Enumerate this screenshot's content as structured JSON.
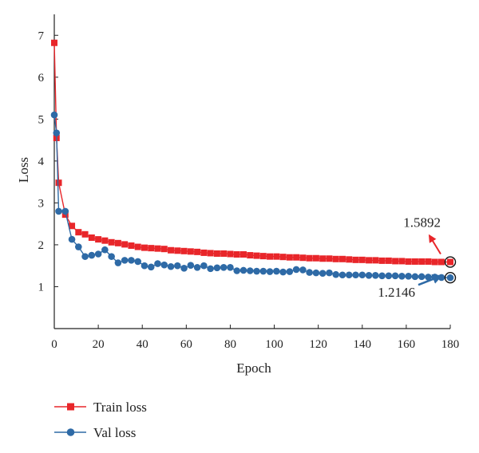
{
  "chart_data": {
    "type": "line",
    "xlabel": "Epoch",
    "ylabel": "Loss",
    "xlim": [
      0,
      180
    ],
    "ylim": [
      0,
      7.5
    ],
    "xticks": [
      0,
      20,
      40,
      60,
      80,
      100,
      120,
      140,
      160,
      180
    ],
    "yticks": [
      1,
      2,
      3,
      4,
      5,
      6,
      7
    ],
    "grid": false,
    "legend_position": "bottom-left",
    "series": [
      {
        "name": "Train loss",
        "color": "#e8262a",
        "marker": "square",
        "x": [
          0,
          1,
          2,
          5,
          8,
          11,
          14,
          17,
          20,
          23,
          26,
          29,
          32,
          35,
          38,
          41,
          44,
          47,
          50,
          53,
          56,
          59,
          62,
          65,
          68,
          71,
          74,
          77,
          80,
          83,
          86,
          89,
          92,
          95,
          98,
          101,
          104,
          107,
          110,
          113,
          116,
          119,
          122,
          125,
          128,
          131,
          134,
          137,
          140,
          143,
          146,
          149,
          152,
          155,
          158,
          161,
          164,
          167,
          170,
          173,
          176,
          180
        ],
        "values": [
          6.82,
          4.55,
          3.48,
          2.72,
          2.45,
          2.3,
          2.25,
          2.17,
          2.13,
          2.1,
          2.06,
          2.04,
          2.01,
          1.98,
          1.95,
          1.93,
          1.92,
          1.91,
          1.9,
          1.87,
          1.86,
          1.85,
          1.84,
          1.83,
          1.81,
          1.8,
          1.79,
          1.79,
          1.78,
          1.77,
          1.77,
          1.75,
          1.74,
          1.73,
          1.72,
          1.72,
          1.71,
          1.7,
          1.7,
          1.69,
          1.68,
          1.68,
          1.67,
          1.67,
          1.66,
          1.66,
          1.65,
          1.64,
          1.64,
          1.63,
          1.63,
          1.62,
          1.62,
          1.61,
          1.61,
          1.6,
          1.6,
          1.6,
          1.6,
          1.59,
          1.59,
          1.5892
        ]
      },
      {
        "name": "Val loss",
        "color": "#2e6aa6",
        "marker": "circle",
        "x": [
          0,
          1,
          2,
          5,
          8,
          11,
          14,
          17,
          20,
          23,
          26,
          29,
          32,
          35,
          38,
          41,
          44,
          47,
          50,
          53,
          56,
          59,
          62,
          65,
          68,
          71,
          74,
          77,
          80,
          83,
          86,
          89,
          92,
          95,
          98,
          101,
          104,
          107,
          110,
          113,
          116,
          119,
          122,
          125,
          128,
          131,
          134,
          137,
          140,
          143,
          146,
          149,
          152,
          155,
          158,
          161,
          164,
          167,
          170,
          173,
          176,
          180
        ],
        "values": [
          5.1,
          4.67,
          2.8,
          2.8,
          2.13,
          1.95,
          1.72,
          1.75,
          1.78,
          1.88,
          1.72,
          1.57,
          1.63,
          1.63,
          1.6,
          1.5,
          1.47,
          1.55,
          1.52,
          1.48,
          1.5,
          1.44,
          1.51,
          1.46,
          1.5,
          1.43,
          1.45,
          1.46,
          1.46,
          1.38,
          1.39,
          1.38,
          1.37,
          1.37,
          1.36,
          1.37,
          1.35,
          1.36,
          1.41,
          1.4,
          1.34,
          1.33,
          1.32,
          1.33,
          1.29,
          1.28,
          1.28,
          1.28,
          1.28,
          1.27,
          1.27,
          1.26,
          1.26,
          1.26,
          1.25,
          1.25,
          1.24,
          1.24,
          1.23,
          1.23,
          1.22,
          1.2146
        ]
      }
    ],
    "annotations": [
      {
        "text": "1.5892",
        "x": 180,
        "y": 1.5892,
        "series": "Train loss"
      },
      {
        "text": "1.2146",
        "x": 180,
        "y": 1.2146,
        "series": "Val loss"
      }
    ]
  }
}
